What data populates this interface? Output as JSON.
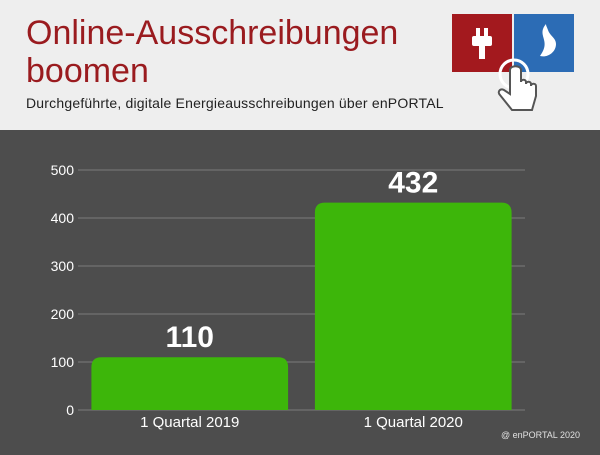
{
  "header": {
    "title": "Online-Ausschreibungen boomen",
    "subtitle": "Durchgeführte, digitale Energieausschreibungen über enPORTAL"
  },
  "logo": {
    "icons": [
      "power-plug-icon",
      "gas-flame-icon",
      "pointing-hand-icon"
    ],
    "colors": {
      "left_tile": "#a3191e",
      "right_tile": "#2c6cb5"
    }
  },
  "footer": {
    "credit": "@ enPORTAL 2020"
  },
  "colors": {
    "bar": "#3db60a",
    "background": "#4d4d4d",
    "header_bg": "#eeeeee",
    "title": "#9a1b1f"
  },
  "chart_data": {
    "type": "bar",
    "title": "",
    "xlabel": "",
    "ylabel": "",
    "categories": [
      "1 Quartal 2019",
      "1 Quartal 2020"
    ],
    "values": [
      110,
      432
    ],
    "data_labels": [
      "110",
      "432"
    ],
    "ylim": [
      0,
      500
    ],
    "yticks": [
      0,
      100,
      200,
      300,
      400,
      500
    ],
    "grid": true,
    "legend": "none"
  }
}
